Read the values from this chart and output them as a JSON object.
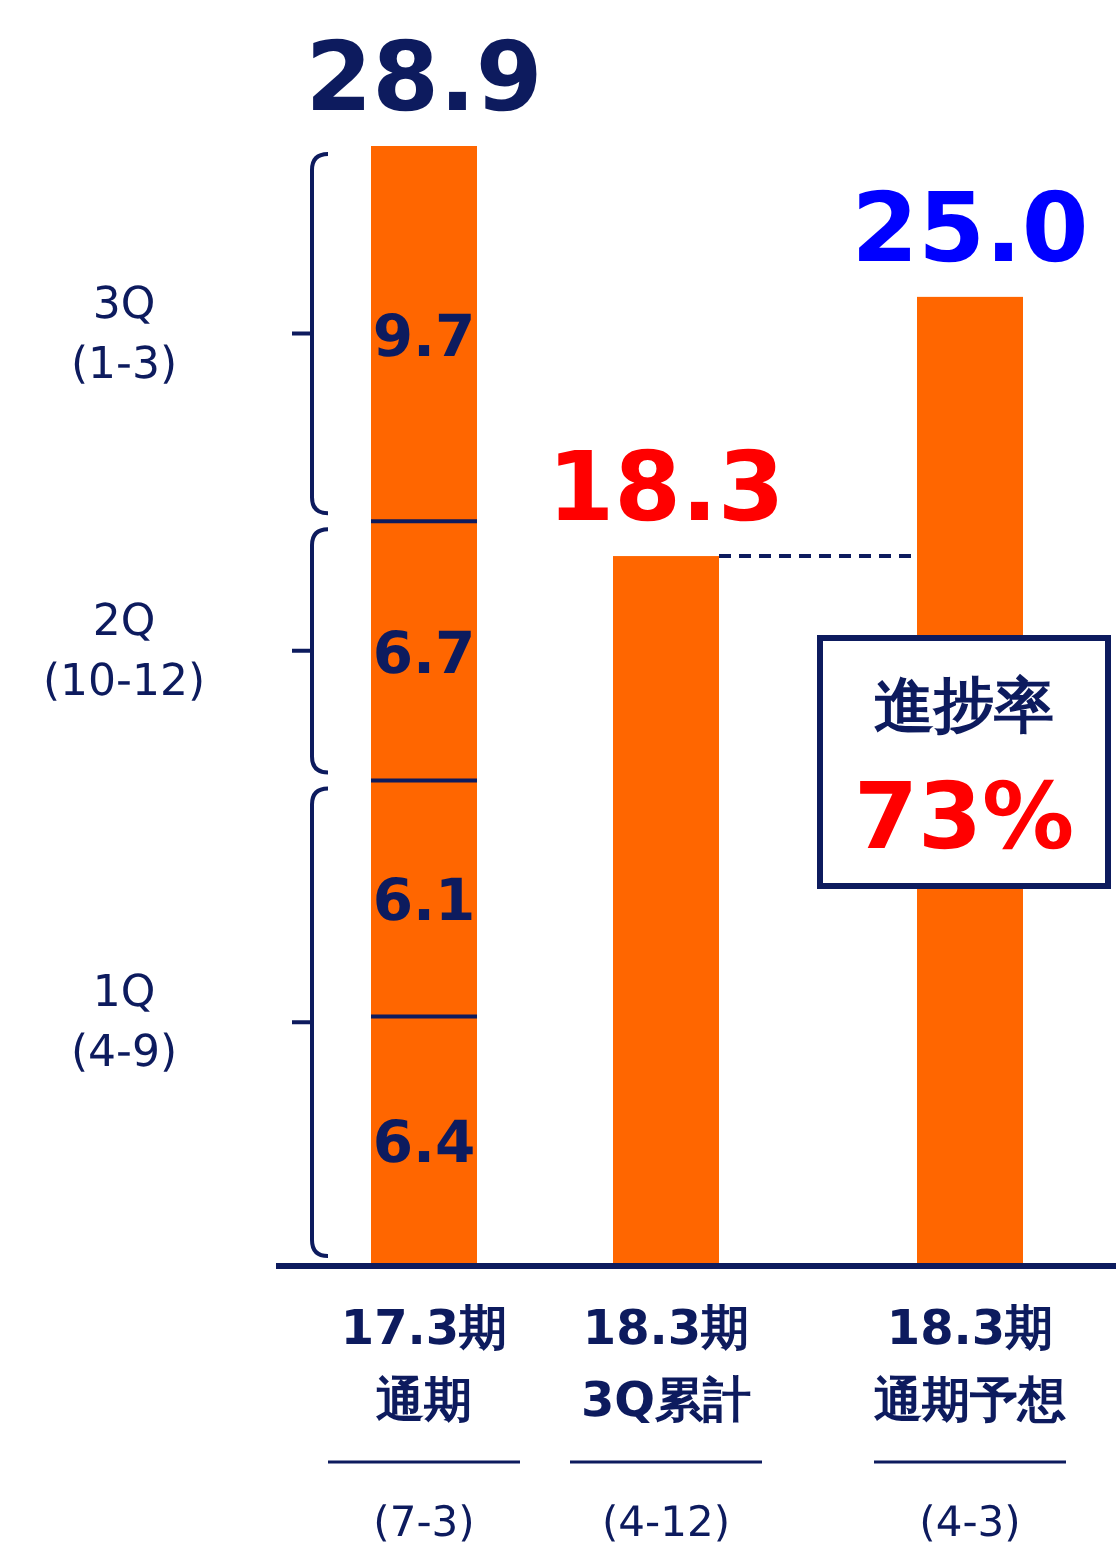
{
  "chart_data": {
    "type": "bar",
    "stacked": true,
    "categories": [
      "17.3期通期",
      "18.3期3Q累計",
      "18.3期通期予想"
    ],
    "series": [
      {
        "color": "#ff6600",
        "values": [
          6.4,
          18.3,
          25.0
        ],
        "value_labels": [
          "6.4",
          null,
          null
        ]
      },
      {
        "color": "#ff6600",
        "values": [
          6.1,
          null,
          null
        ],
        "value_labels": [
          "6.1",
          null,
          null
        ]
      },
      {
        "color": "#ff6600",
        "values": [
          6.7,
          null,
          null
        ],
        "value_labels": [
          "6.7",
          null,
          null
        ]
      },
      {
        "color": "#ff6600",
        "values": [
          9.7,
          null,
          null
        ],
        "value_labels": [
          "9.7",
          null,
          null
        ]
      }
    ],
    "totals": [
      "28.9",
      "18.3",
      "25.0"
    ],
    "ref_lines": [
      {
        "axis": "y",
        "value": 18.3,
        "line_style": "dashed",
        "color": "#0d1b5e"
      }
    ],
    "annotations": [
      "3Q\n(1-3)",
      "2Q\n(10-12)",
      "1Q\n(4-9)",
      "(7-3)",
      "(4-12)",
      "(4-3)",
      "進捗率",
      "73%"
    ]
  }
}
